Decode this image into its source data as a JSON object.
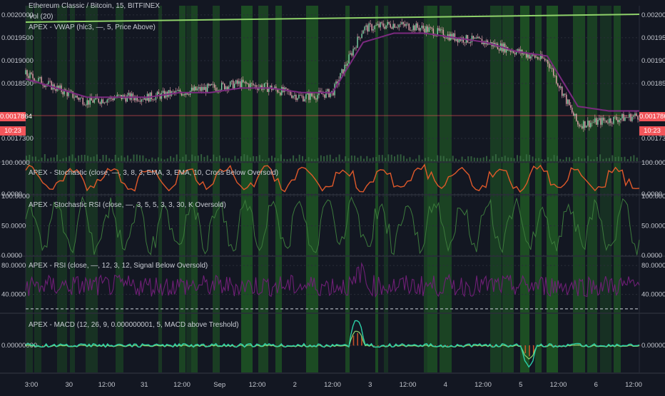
{
  "header": {
    "title": "Ethereum Classic / Bitcoin, 15, BITFINEX",
    "vol_label": "Vol (20)",
    "vwap_label": "APEX - VWAP (hlc3, —, 5, Price Above)"
  },
  "price_badge": {
    "value": "0.0017864",
    "timer": "10:23"
  },
  "panes": {
    "stoch_label": "APEX - Stochastic (close, —, 3, 8, 3, EMA, 3, EMA, 10, Cross Below Oversold)",
    "stochrsi_label": "APEX - Stochastic RSI (close, —, 3, 5, 5, 3, 3, 30, K Oversold)",
    "rsi_label": "APEX - RSI (close, —, 12, 3, 12, Signal Below Oversold)",
    "macd_label": "APEX - MACD (12, 26, 9, 0.000000001, 5, MACD above Treshold)"
  },
  "colors": {
    "background": "#131722",
    "green_zone": "#1f5a24",
    "candle": "#e8a4b0",
    "vwap": "#7b2a7f",
    "trendline": "#8fd16a",
    "stoch": "#e0592a",
    "stochrsi": "#3c7a3c",
    "rsi": "#6f1f76",
    "macd": "#2bd0a8",
    "signal": "#8fd16a",
    "hist": "#e0592a",
    "badge": "#f2555a"
  },
  "chart_data": [
    {
      "type": "line",
      "name": "price",
      "y_ticks": [
        "0.0020000",
        "0.0019500",
        "0.0019000",
        "0.0018500",
        "0.0017300"
      ],
      "x_ticks": [
        "3:00",
        "30",
        "12:00",
        "31",
        "12:00",
        "Sep",
        "12:00",
        "2",
        "12:00",
        "3",
        "12:00",
        "4",
        "12:00",
        "5",
        "12:00",
        "6",
        "12:00"
      ],
      "ylim": [
        0.00168,
        0.00202
      ],
      "x": [
        0,
        10,
        20,
        30,
        40,
        50,
        60,
        70,
        80,
        90,
        100,
        110,
        120,
        130,
        140,
        150,
        160,
        170,
        180,
        190,
        200
      ],
      "values": [
        0.00187,
        0.00184,
        0.00181,
        0.00182,
        0.00182,
        0.00183,
        0.00184,
        0.00185,
        0.00184,
        0.00182,
        0.00183,
        0.00197,
        0.00198,
        0.00197,
        0.00195,
        0.00194,
        0.00192,
        0.0019,
        0.00176,
        0.00177,
        0.00178
      ],
      "vwap": [
        0.00186,
        0.00184,
        0.00182,
        0.00182,
        0.00182,
        0.00183,
        0.00183,
        0.00184,
        0.00184,
        0.00183,
        0.00183,
        0.00194,
        0.00196,
        0.00196,
        0.00195,
        0.00194,
        0.00192,
        0.00191,
        0.0018,
        0.00179,
        0.00179
      ]
    },
    {
      "type": "line",
      "name": "stochastic",
      "y_ticks": [
        "100.0000",
        "0.0000"
      ],
      "ylim": [
        0,
        100
      ],
      "values": [
        50,
        80,
        30,
        90,
        20,
        70,
        40,
        85,
        25,
        60,
        95,
        15,
        75,
        35,
        88,
        22,
        65,
        45,
        92,
        18,
        70
      ]
    },
    {
      "type": "line",
      "name": "stochastic_rsi",
      "y_ticks": [
        "100.0000",
        "50.0000",
        "0.0000"
      ],
      "ylim": [
        0,
        100
      ]
    },
    {
      "type": "line",
      "name": "rsi",
      "y_ticks": [
        "80.0000",
        "40.0000"
      ],
      "ylim": [
        15,
        90
      ],
      "oversold": 20
    },
    {
      "type": "line",
      "name": "macd",
      "y_ticks": [
        "0.00000000"
      ],
      "ylim": [
        -3e-05,
        3e-05
      ]
    }
  ]
}
